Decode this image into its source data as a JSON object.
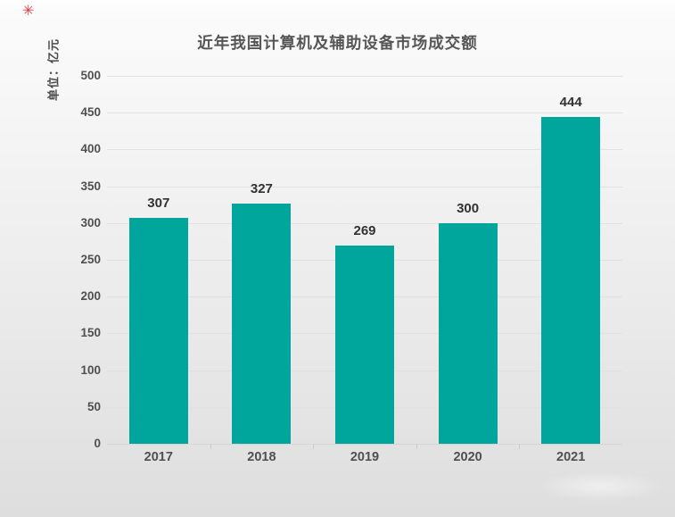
{
  "header": {
    "marker_icon_glyph": "✳",
    "marker_color": "#e03c3c"
  },
  "chart_data": {
    "type": "bar",
    "title": "近年我国计算机及辅助设备市场成交额",
    "ylabel": "单位：亿元",
    "xlabel": "",
    "categories": [
      "2017",
      "2018",
      "2019",
      "2020",
      "2021"
    ],
    "values": [
      307,
      327,
      269,
      300,
      444
    ],
    "ylim": [
      0,
      500
    ],
    "ytick_step": 50,
    "ytick_labels": [
      "0",
      "50",
      "100",
      "150",
      "200",
      "250",
      "300",
      "350",
      "400",
      "450",
      "500"
    ],
    "grid": true,
    "legend": "none",
    "bar_color": "#00A59B",
    "value_label_color": "#313131",
    "axis_text_color": "#4f4f4f"
  }
}
